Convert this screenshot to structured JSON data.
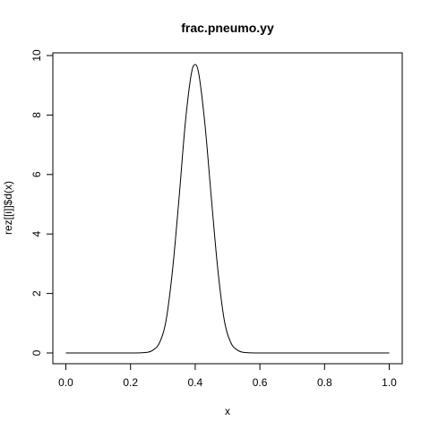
{
  "chart_data": {
    "type": "line",
    "title": "frac.pneumo.yy",
    "xlabel": "x",
    "ylabel": "rez[[i]]$d(x)",
    "xlim": [
      0.0,
      1.0
    ],
    "ylim": [
      0,
      10
    ],
    "x_ticks": [
      "0.0",
      "0.2",
      "0.4",
      "0.6",
      "0.8",
      "1.0"
    ],
    "y_ticks": [
      "0",
      "2",
      "4",
      "6",
      "8",
      "10"
    ],
    "grid": false,
    "legend": "none",
    "line_color": "#000000",
    "series": [
      {
        "x": [
          0.0,
          0.2,
          0.25,
          0.27,
          0.29,
          0.31,
          0.33,
          0.35,
          0.37,
          0.39,
          0.4,
          0.41,
          0.43,
          0.45,
          0.47,
          0.49,
          0.51,
          0.53,
          0.55,
          0.6,
          1.0
        ],
        "y": [
          0.0,
          0.0,
          0.02,
          0.1,
          0.35,
          1.1,
          2.8,
          5.2,
          7.8,
          9.5,
          9.7,
          9.45,
          7.7,
          5.2,
          2.8,
          1.1,
          0.35,
          0.1,
          0.02,
          0.0,
          0.0
        ]
      }
    ]
  }
}
